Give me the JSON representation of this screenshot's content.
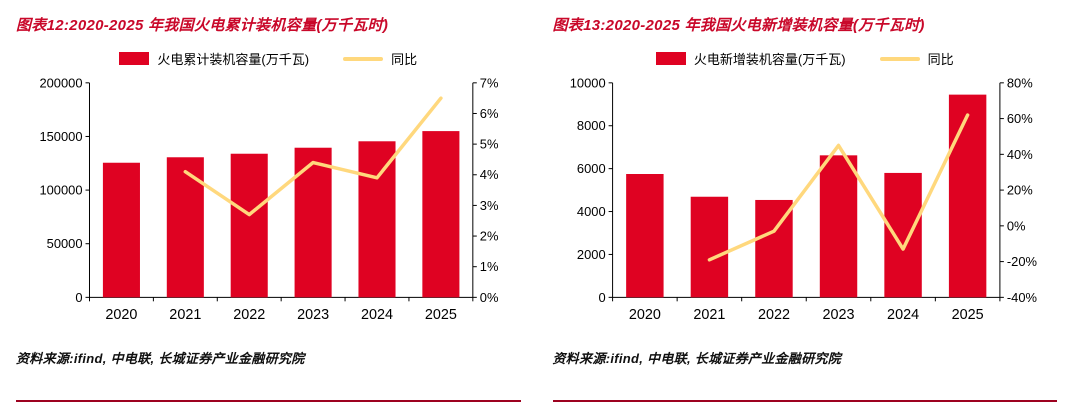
{
  "page": {
    "background": "#ffffff"
  },
  "colors": {
    "title": "#c9082a",
    "bar": "#df0222",
    "line": "#ffd87d",
    "axis": "#000000",
    "text": "#000000",
    "source_rule": "#9d0220"
  },
  "charts": [
    {
      "title": "图表12:2020-2025 年我国火电累计装机容量(万千瓦时)",
      "legend": {
        "bar_label": "火电累计装机容量(万千瓦)",
        "line_label": "同比"
      },
      "source": "资料来源:ifind, 中电联, 长城证券产业金融研究院",
      "chart_data": {
        "type": "bar",
        "combo": "bar+line",
        "title": "2020-2025 年我国火电累计装机容量(万千瓦时)",
        "categories": [
          "2020",
          "2021",
          "2022",
          "2023",
          "2024",
          "2025"
        ],
        "series": [
          {
            "name": "火电累计装机容量(万千瓦)",
            "type": "bar",
            "axis": "left",
            "values": [
              125500,
              130600,
              133900,
              139500,
              145500,
              155000
            ]
          },
          {
            "name": "同比",
            "type": "line",
            "axis": "right",
            "unit": "%",
            "values": [
              null,
              4.1,
              2.7,
              4.4,
              3.9,
              6.5
            ]
          }
        ],
        "left_axis": {
          "min": 0,
          "max": 200000,
          "ticks": [
            0,
            50000,
            100000,
            150000,
            200000
          ]
        },
        "right_axis": {
          "min": 0,
          "max": 7,
          "ticks": [
            0,
            1,
            2,
            3,
            4,
            5,
            6,
            7
          ],
          "suffix": "%"
        },
        "grid": false,
        "legend_position": "top"
      }
    },
    {
      "title": "图表13:2020-2025 年我国火电新增装机容量(万千瓦时)",
      "legend": {
        "bar_label": "火电新增装机容量(万千瓦)",
        "line_label": "同比"
      },
      "source": "资料来源:ifind, 中电联, 长城证券产业金融研究院",
      "chart_data": {
        "type": "bar",
        "combo": "bar+line",
        "title": "2020-2025 年我国火电新增装机容量(万千瓦时)",
        "categories": [
          "2020",
          "2021",
          "2022",
          "2023",
          "2024",
          "2025"
        ],
        "series": [
          {
            "name": "火电新增装机容量(万千瓦)",
            "type": "bar",
            "axis": "left",
            "values": [
              5750,
              4690,
              4540,
              6620,
              5800,
              9450
            ]
          },
          {
            "name": "同比",
            "type": "line",
            "axis": "right",
            "unit": "%",
            "values": [
              null,
              -19,
              -3,
              45,
              -13,
              62
            ]
          }
        ],
        "left_axis": {
          "min": 0,
          "max": 10000,
          "ticks": [
            0,
            2000,
            4000,
            6000,
            8000,
            10000
          ]
        },
        "right_axis": {
          "min": -40,
          "max": 80,
          "ticks": [
            -40,
            -20,
            0,
            20,
            40,
            60,
            80
          ],
          "suffix": "%"
        },
        "grid": false,
        "legend_position": "top"
      }
    }
  ]
}
